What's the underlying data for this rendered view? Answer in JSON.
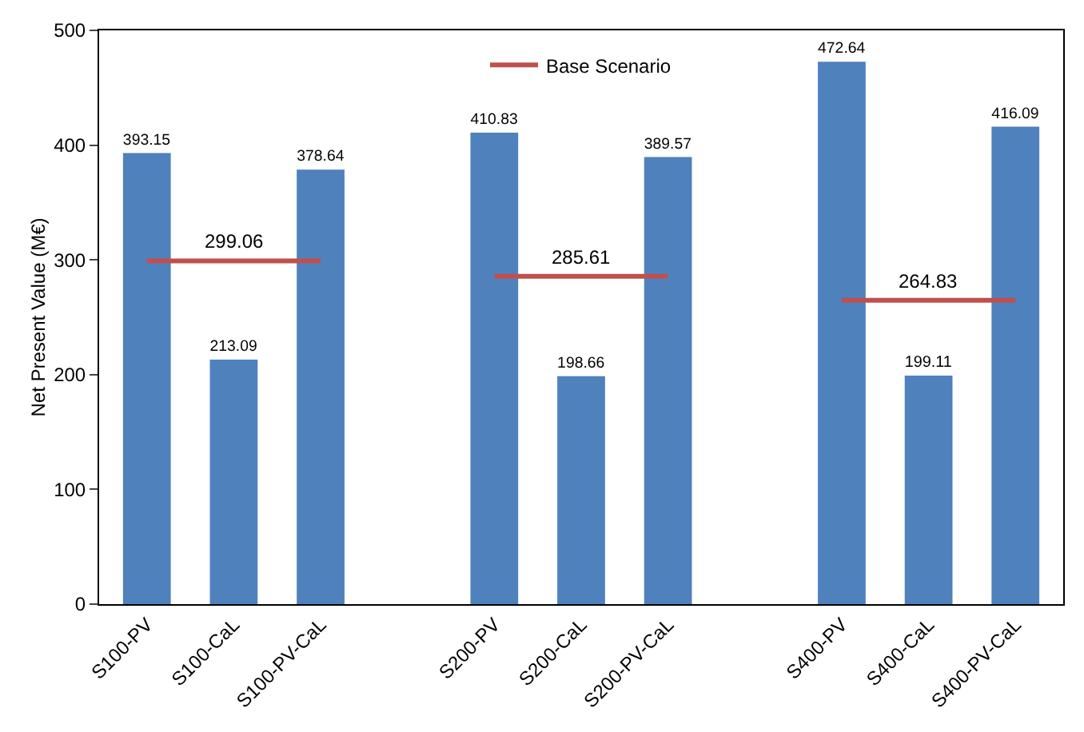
{
  "chart_data": {
    "type": "bar",
    "ylabel": "Net Present Value (M€)",
    "categories": [
      "S100-PV",
      "S100-CaL",
      "S100-PV-CaL",
      null,
      "S200-PV",
      "S200-CaL",
      "S200-PV-CaL",
      null,
      "S400-PV",
      "S400-CaL",
      "S400-PV-CaL"
    ],
    "series": [
      {
        "color": "#4f81bd",
        "values": [
          393.15,
          213.09,
          378.64,
          null,
          410.83,
          198.66,
          389.57,
          null,
          472.64,
          199.11,
          416.09
        ]
      },
      {
        "type": "line",
        "name": "Base Scenario",
        "color": "#c0504d",
        "values": [
          299.06,
          299.06,
          299.06,
          null,
          285.61,
          285.61,
          285.61,
          null,
          264.83,
          264.83,
          264.83
        ],
        "value_labels": [
          null,
          "299.06",
          null,
          null,
          null,
          "285.61",
          null,
          null,
          null,
          "264.83",
          null
        ]
      }
    ],
    "ylim": [
      0,
      500
    ],
    "yticks": [
      0,
      100,
      200,
      300,
      400,
      500
    ],
    "grid": false,
    "data_labels": true,
    "legend": "top",
    "marker": "none",
    "line_style": "solid"
  }
}
